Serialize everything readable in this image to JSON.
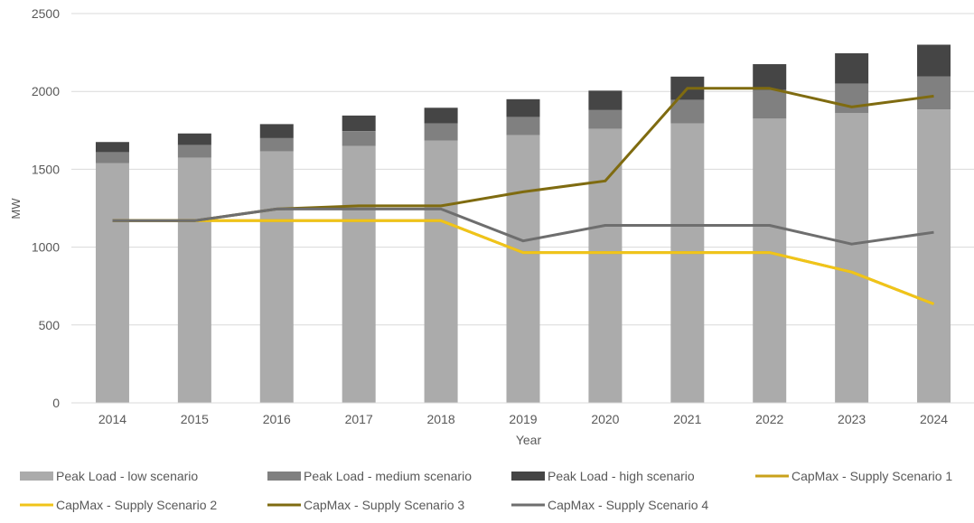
{
  "chart_data": {
    "type": "bar",
    "xlabel": "Year",
    "ylabel": "MW",
    "ylim": [
      0,
      2500
    ],
    "yticks": [
      0,
      500,
      1000,
      1500,
      2000,
      2500
    ],
    "grid": "horizontal",
    "legend_position": "bottom",
    "categories": [
      "2014",
      "2015",
      "2016",
      "2017",
      "2018",
      "2019",
      "2020",
      "2021",
      "2022",
      "2023",
      "2024"
    ],
    "stacked_series": [
      {
        "name": "Peak Load - low scenario",
        "color": "#ababab",
        "values": [
          1540,
          1575,
          1615,
          1650,
          1685,
          1720,
          1760,
          1795,
          1825,
          1860,
          1885
        ]
      },
      {
        "name": "Peak Load - medium scenario",
        "color": "#808080",
        "values": [
          1610,
          1655,
          1700,
          1745,
          1795,
          1835,
          1880,
          1945,
          2010,
          2050,
          2095
        ]
      },
      {
        "name": "Peak Load - high scenario",
        "color": "#454545",
        "values": [
          1675,
          1730,
          1790,
          1845,
          1895,
          1950,
          2005,
          2095,
          2175,
          2245,
          2300
        ]
      }
    ],
    "line_series": [
      {
        "name": "CapMax - Supply Scenario 1",
        "color": "#c9a21b",
        "values": [
          1170,
          1170,
          1170,
          1170,
          1170,
          965,
          965,
          965,
          965,
          840,
          635
        ]
      },
      {
        "name": "CapMax - Supply Scenario 2",
        "color": "#f0c419",
        "values": [
          1170,
          1170,
          1170,
          1170,
          1170,
          965,
          965,
          965,
          965,
          840,
          635
        ]
      },
      {
        "name": "CapMax - Supply Scenario 3",
        "color": "#7f6b10",
        "values": [
          1170,
          1170,
          1245,
          1265,
          1265,
          1355,
          1425,
          2020,
          2020,
          1900,
          1970
        ]
      },
      {
        "name": "CapMax - Supply Scenario 4",
        "color": "#6e6e6e",
        "values": [
          1170,
          1170,
          1245,
          1245,
          1245,
          1040,
          1140,
          1140,
          1140,
          1020,
          1095
        ]
      }
    ],
    "legend": [
      {
        "label": "Peak Load - low scenario",
        "kind": "box",
        "color": "#ababab"
      },
      {
        "label": "Peak Load - medium scenario",
        "kind": "box",
        "color": "#808080"
      },
      {
        "label": "Peak Load - high scenario",
        "kind": "box",
        "color": "#454545"
      },
      {
        "label": "CapMax - Supply Scenario 1",
        "kind": "line",
        "color": "#c9a21b"
      },
      {
        "label": "CapMax - Supply Scenario 2",
        "kind": "line",
        "color": "#f0c419"
      },
      {
        "label": "CapMax - Supply Scenario 3",
        "kind": "line",
        "color": "#7f6b10"
      },
      {
        "label": "CapMax - Supply Scenario 4",
        "kind": "line",
        "color": "#6e6e6e"
      }
    ]
  }
}
